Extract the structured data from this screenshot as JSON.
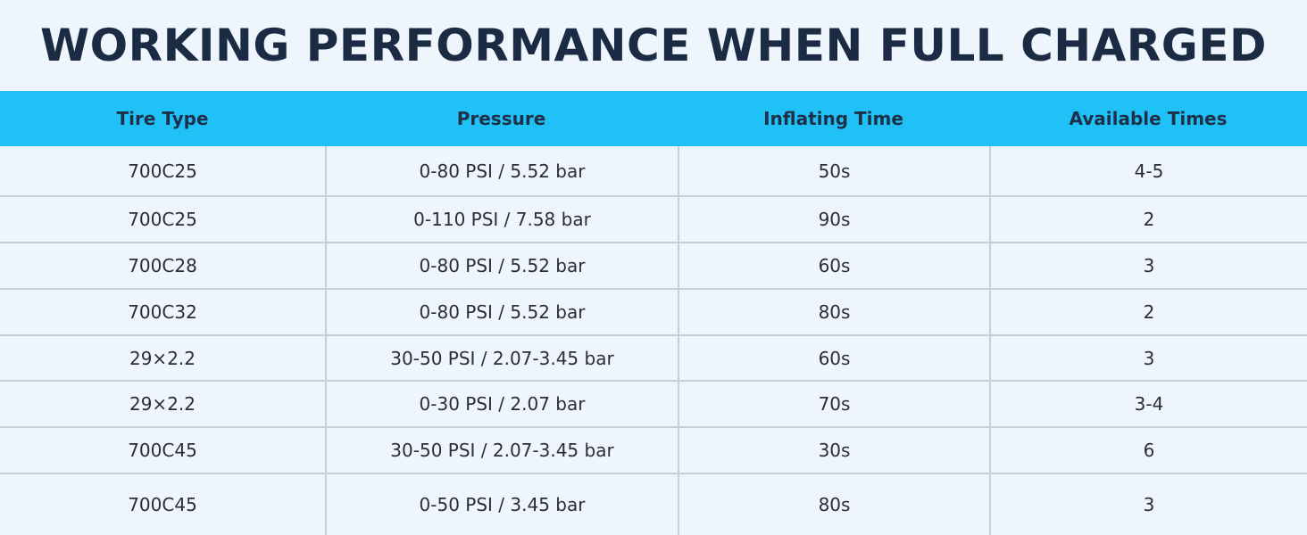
{
  "title": "WORKING PERFORMANCE WHEN FULL CHARGED",
  "table": {
    "headers": [
      "Tire Type",
      "Pressure",
      "Inflating Time",
      "Available Times"
    ],
    "rows": [
      [
        "700C25",
        "0-80 PSI / 5.52 bar",
        "50s",
        "4-5"
      ],
      [
        "700C25",
        "0-110 PSI / 7.58 bar",
        "90s",
        "2"
      ],
      [
        "700C28",
        "0-80 PSI / 5.52 bar",
        "60s",
        "3"
      ],
      [
        "700C32",
        "0-80 PSI / 5.52 bar",
        "80s",
        "2"
      ],
      [
        "29×2.2",
        "30-50 PSI / 2.07-3.45 bar",
        "60s",
        "3"
      ],
      [
        "29×2.2",
        "0-30 PSI / 2.07 bar",
        "70s",
        "3-4"
      ],
      [
        "700C45",
        "30-50 PSI / 2.07-3.45 bar",
        "30s",
        "6"
      ],
      [
        "700C45",
        "0-50 PSI / 3.45 bar",
        "80s",
        "3"
      ]
    ]
  },
  "colors": {
    "background": "#eef5fc",
    "header_background": "#1fc1f6",
    "title_text": "#1c2b44",
    "grid_line": "#c9cfd6"
  }
}
